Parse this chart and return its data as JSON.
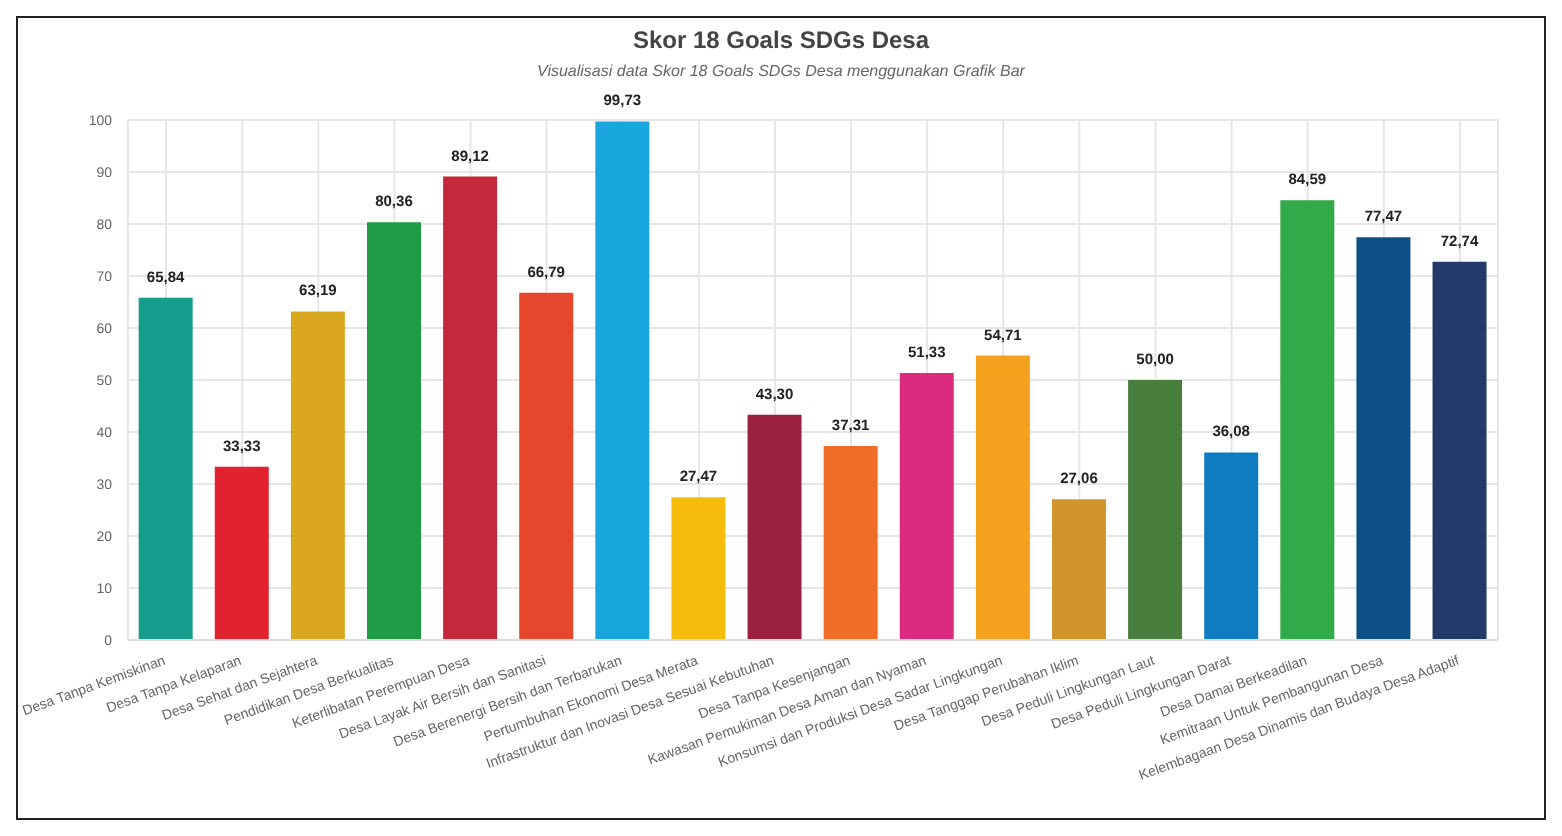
{
  "chart_data": {
    "type": "bar",
    "title": "Skor 18 Goals SDGs Desa",
    "subtitle": "Visualisasi data Skor 18 Goals SDGs Desa menggunakan Grafik Bar",
    "categories": [
      "Desa Tanpa Kemiskinan",
      "Desa Tanpa Kelaparan",
      "Desa Sehat dan Sejahtera",
      "Pendidikan Desa Berkualitas",
      "Keterlibatan Perempuan Desa",
      "Desa Layak Air Bersih dan Sanitasi",
      "Desa Berenergi Bersih dan Terbarukan",
      "Pertumbuhan Ekonomi Desa Merata",
      "Infrastruktur dan Inovasi Desa Sesuai Kebutuhan",
      "Desa Tanpa Kesenjangan",
      "Kawasan Pemukiman Desa Aman dan Nyaman",
      "Konsumsi dan Produksi Desa Sadar Lingkungan",
      "Desa Tanggap Perubahan Iklim",
      "Desa Peduli Lingkungan Laut",
      "Desa Peduli Lingkungan Darat",
      "Desa Damai Berkeadilan",
      "Kemitraan Untuk Pembangunan Desa",
      "Kelembagaan Desa Dinamis dan Budaya Desa Adaptif"
    ],
    "values": [
      65.84,
      33.33,
      63.19,
      80.36,
      89.12,
      66.79,
      99.73,
      27.47,
      43.3,
      37.31,
      51.33,
      54.71,
      27.06,
      50.0,
      36.08,
      84.59,
      77.47,
      72.74
    ],
    "value_labels": [
      "65,84",
      "33,33",
      "63,19",
      "80,36",
      "89,12",
      "66,79",
      "99,73",
      "27,47",
      "43,30",
      "37,31",
      "51,33",
      "54,71",
      "27,06",
      "50,00",
      "36,08",
      "84,59",
      "77,47",
      "72,74"
    ],
    "colors": [
      "#169c8c",
      "#e0232f",
      "#d9a81f",
      "#1f9a45",
      "#c4283a",
      "#e6462c",
      "#18a6dc",
      "#f6bc0c",
      "#9c213f",
      "#ef6d24",
      "#dd2a81",
      "#f4a11d",
      "#d29529",
      "#487e3e",
      "#0f7bc0",
      "#31ab49",
      "#0c5087",
      "#213a6a"
    ],
    "ylim": [
      0,
      100
    ],
    "yticks": [
      0,
      10,
      20,
      30,
      40,
      50,
      60,
      70,
      80,
      90,
      100
    ],
    "grid": true
  }
}
